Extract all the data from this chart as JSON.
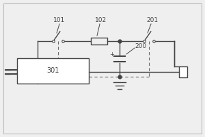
{
  "bg_color": "#efefef",
  "line_color": "#444444",
  "dashed_color": "#666666",
  "border_color": "#bbbbbb",
  "fig_bg": "#efefef",
  "label_fontsize": 6.5,
  "title_fontsize": 7,
  "lw": 1.0
}
